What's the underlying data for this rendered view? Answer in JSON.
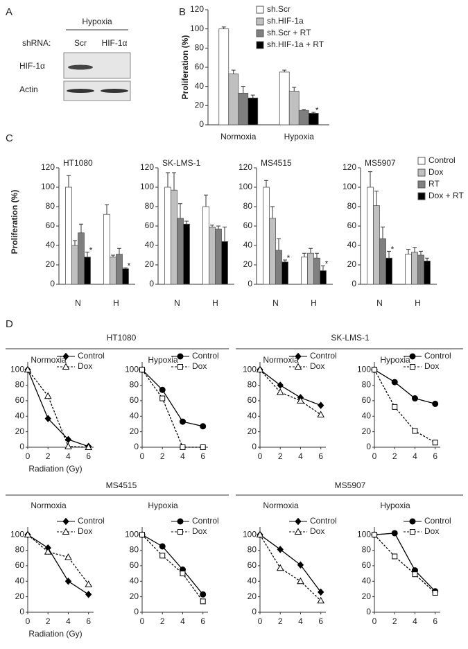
{
  "panel_labels": [
    "A",
    "B",
    "C",
    "D"
  ],
  "blot": {
    "condition": "Hypoxia",
    "row_header": "shRNA:",
    "lanes": [
      "Scr",
      "HIF-1α"
    ],
    "rows": [
      "HIF-1α",
      "Actin"
    ]
  },
  "chart_data": [
    {
      "type": "bar",
      "ylabel": "Proliferation (%)",
      "categories": [
        "Normoxia",
        "Hypoxia"
      ],
      "ylim": [
        0,
        120
      ],
      "yticks": [
        0,
        20,
        40,
        60,
        80,
        100,
        120
      ],
      "significance_marker": "*",
      "series": [
        {
          "name": "sh.Scr",
          "color": "#ffffff",
          "values": [
            100,
            55
          ],
          "errors": [
            2,
            2
          ],
          "significant": [
            false,
            false
          ]
        },
        {
          "name": "sh.HIF-1a",
          "color": "#c0c0c0",
          "values": [
            53,
            35
          ],
          "errors": [
            4,
            4
          ],
          "significant": [
            false,
            false
          ]
        },
        {
          "name": "sh.Scr + RT",
          "color": "#7f7f7f",
          "values": [
            33,
            15
          ],
          "errors": [
            7,
            1
          ],
          "significant": [
            false,
            false
          ]
        },
        {
          "name": "sh.HIF-1a + RT",
          "color": "#000000",
          "values": [
            28,
            12
          ],
          "errors": [
            3,
            1
          ],
          "significant": [
            false,
            true
          ]
        }
      ]
    },
    {
      "type": "bar-panels",
      "ylabel": "Proliferation (%)",
      "ylim": [
        0,
        120
      ],
      "yticks": [
        0,
        20,
        40,
        60,
        80,
        100,
        120
      ],
      "significance_marker": "*",
      "series": [
        {
          "name": "Control",
          "color": "#ffffff"
        },
        {
          "name": "Dox",
          "color": "#c0c0c0"
        },
        {
          "name": "RT",
          "color": "#7f7f7f"
        },
        {
          "name": "Dox + RT",
          "color": "#000000"
        }
      ],
      "panels": [
        {
          "title": "HT1080",
          "categories": [
            "N",
            "H"
          ],
          "series": [
            {
              "values": [
                100,
                72
              ],
              "errors": [
                12,
                10
              ],
              "significant": [
                false,
                false
              ]
            },
            {
              "values": [
                40,
                28
              ],
              "errors": [
                5,
                2
              ],
              "significant": [
                false,
                false
              ]
            },
            {
              "values": [
                53,
                31
              ],
              "errors": [
                9,
                6
              ],
              "significant": [
                false,
                false
              ]
            },
            {
              "values": [
                28,
                16
              ],
              "errors": [
                5,
                1
              ],
              "significant": [
                true,
                true
              ]
            }
          ]
        },
        {
          "title": "SK-LMS-1",
          "categories": [
            "N",
            "H"
          ],
          "series": [
            {
              "values": [
                100,
                80
              ],
              "errors": [
                15,
                12
              ],
              "significant": [
                false,
                false
              ]
            },
            {
              "values": [
                97,
                59
              ],
              "errors": [
                18,
                2
              ],
              "significant": [
                false,
                false
              ]
            },
            {
              "values": [
                68,
                57
              ],
              "errors": [
                15,
                3
              ],
              "significant": [
                false,
                false
              ]
            },
            {
              "values": [
                62,
                44
              ],
              "errors": [
                3,
                15
              ],
              "significant": [
                false,
                false
              ]
            }
          ]
        },
        {
          "title": "MS4515",
          "categories": [
            "N",
            "H"
          ],
          "series": [
            {
              "values": [
                100,
                28
              ],
              "errors": [
                7,
                4
              ],
              "significant": [
                false,
                false
              ]
            },
            {
              "values": [
                68,
                32
              ],
              "errors": [
                12,
                5
              ],
              "significant": [
                false,
                false
              ]
            },
            {
              "values": [
                35,
                27
              ],
              "errors": [
                12,
                5
              ],
              "significant": [
                false,
                false
              ]
            },
            {
              "values": [
                23,
                14
              ],
              "errors": [
                2,
                5
              ],
              "significant": [
                true,
                true
              ]
            }
          ]
        },
        {
          "title": "MS5907",
          "categories": [
            "N",
            "H"
          ],
          "series": [
            {
              "values": [
                100,
                31
              ],
              "errors": [
                16,
                5
              ],
              "significant": [
                false,
                false
              ]
            },
            {
              "values": [
                81,
                33
              ],
              "errors": [
                15,
                5
              ],
              "significant": [
                false,
                false
              ]
            },
            {
              "values": [
                47,
                30
              ],
              "errors": [
                12,
                4
              ],
              "significant": [
                false,
                false
              ]
            },
            {
              "values": [
                27,
                24
              ],
              "errors": [
                7,
                3
              ],
              "significant": [
                true,
                false
              ]
            }
          ]
        }
      ]
    },
    {
      "type": "line-panels",
      "x": [
        0,
        2,
        4,
        6
      ],
      "xlim": [
        0,
        6.5
      ],
      "xticks": [
        0,
        2,
        4,
        6
      ],
      "ylim": [
        0,
        110
      ],
      "yticks": [
        0,
        20,
        40,
        60,
        80,
        100
      ],
      "xlabel": "Radiation (Gy)",
      "groups": [
        {
          "title": "HT1080",
          "charts": [
            {
              "title": "Normoxia",
              "series": [
                {
                  "name": "Control",
                  "color": "#000000",
                  "marker": "diamond",
                  "dashed": false,
                  "values": [
                    100,
                    37,
                    10,
                    1
                  ]
                },
                {
                  "name": "Dox",
                  "color": "#000000",
                  "marker": "triangle",
                  "dashed": true,
                  "values": [
                    100,
                    66,
                    1,
                    0
                  ]
                }
              ]
            },
            {
              "title": "Hypoxia",
              "series": [
                {
                  "name": "Control",
                  "color": "#000000",
                  "marker": "circle",
                  "dashed": false,
                  "values": [
                    100,
                    74,
                    33,
                    27
                  ]
                },
                {
                  "name": "Dox",
                  "color": "#000000",
                  "marker": "square",
                  "dashed": true,
                  "values": [
                    100,
                    63,
                    0,
                    0
                  ]
                }
              ]
            }
          ]
        },
        {
          "title": "SK-LMS-1",
          "charts": [
            {
              "title": "Normoxia",
              "series": [
                {
                  "name": "Control",
                  "color": "#000000",
                  "marker": "diamond",
                  "dashed": false,
                  "values": [
                    100,
                    80,
                    64,
                    54
                  ]
                },
                {
                  "name": "Dox",
                  "color": "#000000",
                  "marker": "triangle",
                  "dashed": true,
                  "values": [
                    100,
                    71,
                    60,
                    42
                  ]
                }
              ]
            },
            {
              "title": "Hypoxia",
              "series": [
                {
                  "name": "Control",
                  "color": "#000000",
                  "marker": "circle",
                  "dashed": false,
                  "values": [
                    100,
                    84,
                    63,
                    56
                  ]
                },
                {
                  "name": "Dox",
                  "color": "#000000",
                  "marker": "square",
                  "dashed": true,
                  "values": [
                    100,
                    52,
                    21,
                    6
                  ]
                }
              ]
            }
          ]
        },
        {
          "title": "MS4515",
          "charts": [
            {
              "title": "Normoxia",
              "series": [
                {
                  "name": "Control",
                  "color": "#000000",
                  "marker": "diamond",
                  "dashed": false,
                  "values": [
                    100,
                    83,
                    40,
                    23
                  ]
                },
                {
                  "name": "Dox",
                  "color": "#000000",
                  "marker": "triangle",
                  "dashed": true,
                  "values": [
                    100,
                    78,
                    71,
                    36
                  ]
                }
              ]
            },
            {
              "title": "Hypoxia",
              "series": [
                {
                  "name": "Control",
                  "color": "#000000",
                  "marker": "circle",
                  "dashed": false,
                  "values": [
                    100,
                    85,
                    55,
                    23
                  ]
                },
                {
                  "name": "Dox",
                  "color": "#000000",
                  "marker": "square",
                  "dashed": true,
                  "values": [
                    100,
                    73,
                    50,
                    14
                  ]
                }
              ]
            }
          ]
        },
        {
          "title": "MS5907",
          "charts": [
            {
              "title": "Normoxia",
              "series": [
                {
                  "name": "Control",
                  "color": "#000000",
                  "marker": "diamond",
                  "dashed": false,
                  "values": [
                    100,
                    81,
                    61,
                    26
                  ]
                },
                {
                  "name": "Dox",
                  "color": "#000000",
                  "marker": "triangle",
                  "dashed": true,
                  "values": [
                    100,
                    57,
                    40,
                    15
                  ]
                }
              ]
            },
            {
              "title": "Hypoxia",
              "series": [
                {
                  "name": "Control",
                  "color": "#000000",
                  "marker": "circle",
                  "dashed": false,
                  "values": [
                    100,
                    102,
                    54,
                    27
                  ]
                },
                {
                  "name": "Dox",
                  "color": "#000000",
                  "marker": "square",
                  "dashed": true,
                  "values": [
                    100,
                    72,
                    49,
                    25
                  ]
                }
              ]
            }
          ]
        }
      ]
    }
  ]
}
